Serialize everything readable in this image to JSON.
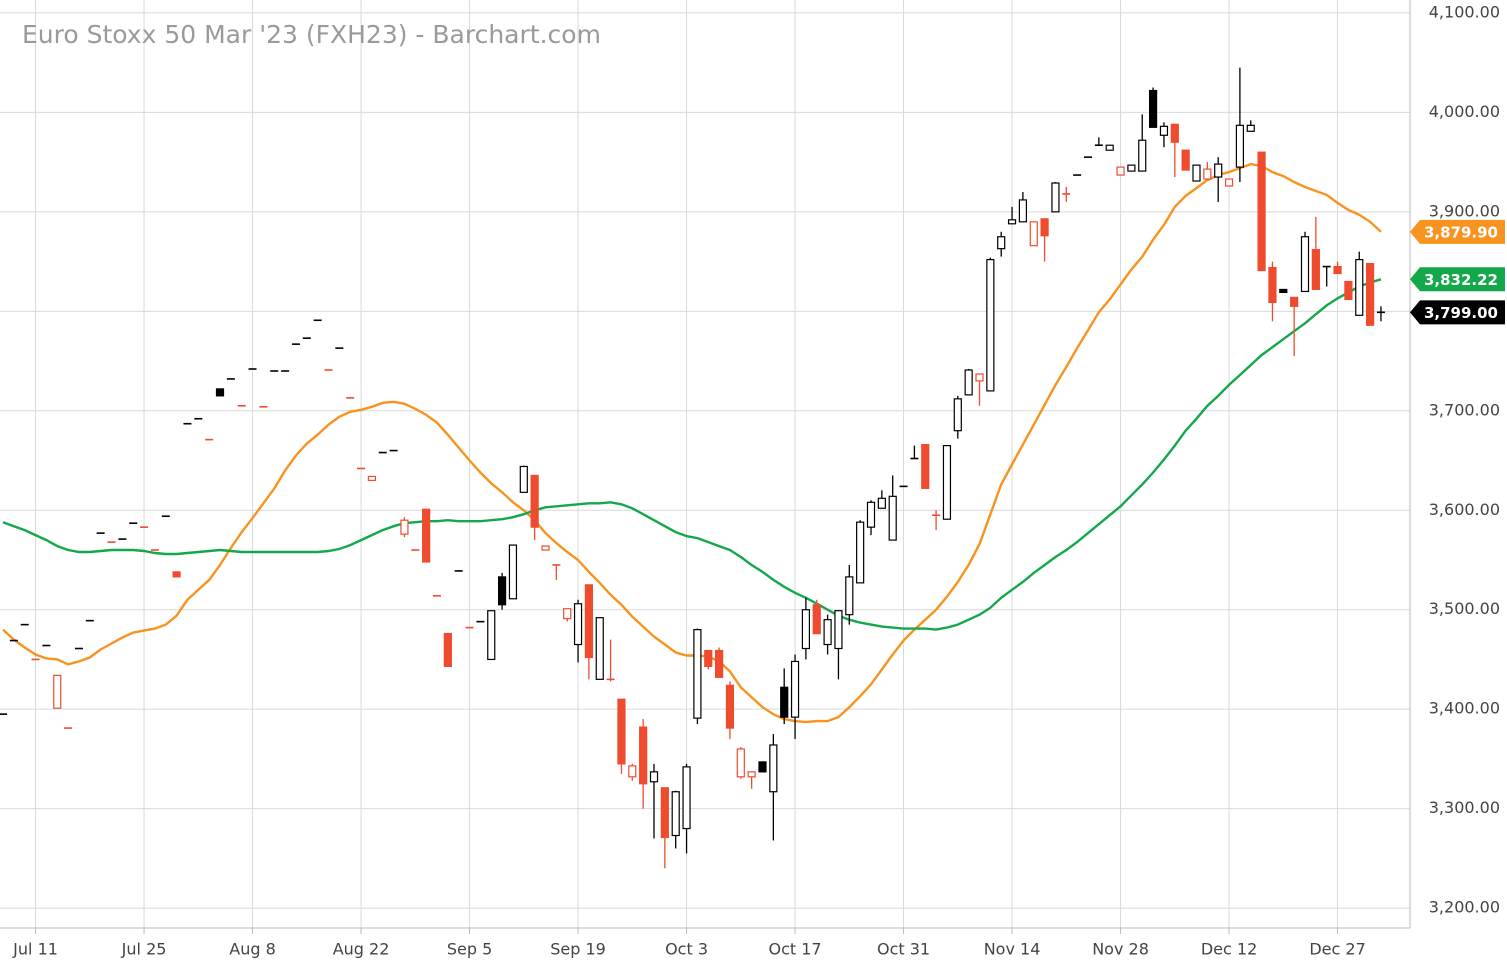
{
  "chart_data": {
    "type": "candlestick",
    "title": "Euro Stoxx 50 Mar '23 (FXH23) - Barchart.com",
    "x": [
      null,
      null,
      null,
      "Jul 11",
      null,
      null,
      null,
      null,
      null,
      null,
      null,
      null,
      null,
      "Jul 25",
      null,
      null,
      null,
      null,
      null,
      null,
      null,
      null,
      null,
      "Aug 8",
      null,
      null,
      null,
      null,
      null,
      null,
      null,
      null,
      null,
      "Aug 22",
      null,
      null,
      null,
      null,
      null,
      null,
      null,
      null,
      null,
      "Sep 5",
      null,
      null,
      null,
      null,
      null,
      null,
      null,
      null,
      null,
      "Sep 19",
      null,
      null,
      null,
      null,
      null,
      null,
      null,
      null,
      null,
      "Oct 3",
      null,
      null,
      null,
      null,
      null,
      null,
      null,
      null,
      null,
      "Oct 17",
      null,
      null,
      null,
      null,
      null,
      null,
      null,
      null,
      null,
      "Oct 31",
      null,
      null,
      null,
      null,
      null,
      null,
      null,
      null,
      null,
      "Nov 14",
      null,
      null,
      null,
      null,
      null,
      null,
      null,
      null,
      null,
      "Nov 28",
      null,
      null,
      null,
      null,
      null,
      null,
      null,
      null,
      null,
      "Dec 12",
      null,
      null,
      null,
      null,
      null,
      null,
      null,
      null,
      null,
      "Dec 27",
      null,
      null,
      null,
      null
    ],
    "ohlc": [
      [
        3395,
        3395,
        3395,
        3395
      ],
      [
        3469,
        3469,
        3469,
        3469
      ],
      [
        3485,
        3485,
        3485,
        3485
      ],
      [
        3450,
        3450,
        3450,
        3450
      ],
      [
        3464,
        3464,
        3464,
        3464
      ],
      [
        3401,
        3434,
        3401,
        3434
      ],
      [
        3381,
        3381,
        3381,
        3381
      ],
      [
        3461,
        3461,
        3461,
        3461
      ],
      [
        3489,
        3489,
        3489,
        3489
      ],
      [
        3577,
        3577,
        3577,
        3577
      ],
      [
        3568,
        3568,
        3568,
        3568
      ],
      [
        3571,
        3571,
        3571,
        3571
      ],
      [
        3587,
        3587,
        3587,
        3587
      ],
      [
        3583,
        3583,
        3583,
        3583
      ],
      [
        3560,
        3560,
        3560,
        3560
      ],
      [
        3594,
        3594,
        3594,
        3594
      ],
      [
        3538,
        3538,
        3533,
        3533
      ],
      [
        3687,
        3687,
        3687,
        3687
      ],
      [
        3692,
        3692,
        3692,
        3692
      ],
      [
        3671,
        3671,
        3671,
        3671
      ],
      [
        3722,
        3722,
        3715,
        3715
      ],
      [
        3732,
        3732,
        3732,
        3732
      ],
      [
        3705,
        3705,
        3705,
        3705
      ],
      [
        3742,
        3742,
        3742,
        3742
      ],
      [
        3704,
        3704,
        3704,
        3704
      ],
      [
        3740,
        3740,
        3740,
        3740
      ],
      [
        3740,
        3740,
        3740,
        3740
      ],
      [
        3767,
        3767,
        3767,
        3767
      ],
      [
        3773,
        3773,
        3773,
        3773
      ],
      [
        3791,
        3791,
        3791,
        3791
      ],
      [
        3741,
        3741,
        3741,
        3741
      ],
      [
        3763,
        3763,
        3763,
        3763
      ],
      [
        3713,
        3713,
        3713,
        3713
      ],
      [
        3642,
        3642,
        3642,
        3642
      ],
      [
        3630,
        3634,
        3630,
        3634
      ],
      [
        3658,
        3658,
        3658,
        3658
      ],
      [
        3660,
        3660,
        3660,
        3660
      ],
      [
        3576,
        3593,
        3573,
        3590
      ],
      [
        3560,
        3560,
        3560,
        3560
      ],
      [
        3601,
        3601,
        3548,
        3548
      ],
      [
        3514,
        3514,
        3514,
        3514
      ],
      [
        3476,
        3476,
        3443,
        3443
      ],
      [
        3539,
        3539,
        3539,
        3539
      ],
      [
        3482,
        3482,
        3482,
        3482
      ],
      [
        3488,
        3488,
        3488,
        3488
      ],
      [
        3450,
        3499,
        3450,
        3499
      ],
      [
        3533,
        3537,
        3500,
        3505
      ],
      [
        3511,
        3565,
        3511,
        3565
      ],
      [
        3618,
        3645,
        3618,
        3644
      ],
      [
        3635,
        3635,
        3570,
        3583
      ],
      [
        3560,
        3564,
        3560,
        3564
      ],
      [
        3545,
        3545,
        3530,
        3545
      ],
      [
        3491,
        3501,
        3488,
        3501
      ],
      [
        3465,
        3510,
        3447,
        3506
      ],
      [
        3525,
        3525,
        3430,
        3452
      ],
      [
        3430,
        3492,
        3430,
        3492
      ],
      [
        3430,
        3470,
        3428,
        3430
      ],
      [
        3410,
        3410,
        3335,
        3345
      ],
      [
        3332,
        3345,
        3328,
        3343
      ],
      [
        3382,
        3390,
        3300,
        3325
      ],
      [
        3327,
        3345,
        3270,
        3337
      ],
      [
        3321,
        3321,
        3240,
        3271
      ],
      [
        3273,
        3318,
        3260,
        3317
      ],
      [
        3280,
        3345,
        3255,
        3342
      ],
      [
        3391,
        3481,
        3385,
        3480
      ],
      [
        3459,
        3459,
        3440,
        3443
      ],
      [
        3459,
        3462,
        3432,
        3432
      ],
      [
        3424,
        3428,
        3370,
        3381
      ],
      [
        3332,
        3362,
        3330,
        3360
      ],
      [
        3332,
        3337,
        3320,
        3337
      ],
      [
        3347,
        3347,
        3337,
        3337
      ],
      [
        3317,
        3375,
        3268,
        3364
      ],
      [
        3422,
        3441,
        3385,
        3392
      ],
      [
        3392,
        3455,
        3370,
        3448
      ],
      [
        3461,
        3512,
        3450,
        3500
      ],
      [
        3505,
        3510,
        3476,
        3476
      ],
      [
        3465,
        3495,
        3455,
        3490
      ],
      [
        3461,
        3499,
        3430,
        3499
      ],
      [
        3495,
        3545,
        3485,
        3533
      ],
      [
        3527,
        3590,
        3527,
        3588
      ],
      [
        3583,
        3610,
        3575,
        3608
      ],
      [
        3602,
        3620,
        3602,
        3612
      ],
      [
        3570,
        3635,
        3570,
        3614
      ],
      [
        3624,
        3624,
        3624,
        3624
      ],
      [
        3652,
        3665,
        3652,
        3652
      ],
      [
        3666,
        3666,
        3622,
        3622
      ],
      [
        3595,
        3600,
        3580,
        3595
      ],
      [
        3591,
        3665,
        3591,
        3665
      ],
      [
        3680,
        3715,
        3672,
        3712
      ],
      [
        3716,
        3742,
        3716,
        3741
      ],
      [
        3730,
        3737,
        3705,
        3737
      ],
      [
        3720,
        3854,
        3720,
        3852
      ],
      [
        3863,
        3880,
        3855,
        3875
      ],
      [
        3888,
        3905,
        3888,
        3892
      ],
      [
        3890,
        3920,
        3890,
        3912
      ],
      [
        3866,
        3890,
        3866,
        3890
      ],
      [
        3893,
        3893,
        3850,
        3876
      ],
      [
        3900,
        3930,
        3900,
        3929
      ],
      [
        3918,
        3925,
        3910,
        3918
      ],
      [
        3937,
        3937,
        3937,
        3937
      ],
      [
        3955,
        3955,
        3955,
        3955
      ],
      [
        3967,
        3975,
        3967,
        3967
      ],
      [
        3962,
        3967,
        3962,
        3967
      ],
      [
        3937,
        3945,
        3937,
        3945
      ],
      [
        3941,
        3947,
        3941,
        3947
      ],
      [
        3941,
        3998,
        3941,
        3972
      ],
      [
        4022,
        4025,
        3985,
        3985
      ],
      [
        3977,
        3990,
        3965,
        3986
      ],
      [
        3988,
        3988,
        3935,
        3970
      ],
      [
        3962,
        3962,
        3942,
        3942
      ],
      [
        3931,
        3947,
        3931,
        3947
      ],
      [
        3933,
        3950,
        3933,
        3943
      ],
      [
        3935,
        3955,
        3910,
        3948
      ],
      [
        3926,
        3933,
        3926,
        3933
      ],
      [
        3945,
        4045,
        3930,
        3987
      ],
      [
        3981,
        3992,
        3981,
        3987
      ],
      [
        3960,
        3960,
        3841,
        3841
      ],
      [
        3844,
        3850,
        3790,
        3809
      ],
      [
        3822,
        3822,
        3819,
        3819
      ],
      [
        3814,
        3814,
        3755,
        3805
      ],
      [
        3820,
        3880,
        3820,
        3875
      ],
      [
        3862,
        3895,
        3822,
        3822
      ],
      [
        3845,
        3845,
        3825,
        3845
      ],
      [
        3845,
        3850,
        3838,
        3838
      ],
      [
        3830,
        3830,
        3812,
        3812
      ],
      [
        3796,
        3860,
        3796,
        3852
      ],
      [
        3848,
        3848,
        3786,
        3786
      ],
      [
        3799,
        3805,
        3790,
        3799
      ]
    ],
    "up_color": "#000000",
    "down_color": "#ef4b2f",
    "overlays": [
      {
        "color": "#f7931e",
        "values": [
          3480,
          3470,
          3462,
          3455,
          3451,
          3450,
          3445,
          3448,
          3452,
          3460,
          3466,
          3472,
          3477,
          3479,
          3481,
          3485,
          3494,
          3510,
          3520,
          3530,
          3545,
          3562,
          3578,
          3592,
          3607,
          3622,
          3640,
          3655,
          3667,
          3676,
          3686,
          3694,
          3699,
          3701,
          3704,
          3708,
          3709,
          3707,
          3702,
          3696,
          3688,
          3676,
          3663,
          3650,
          3638,
          3627,
          3618,
          3608,
          3600,
          3590,
          3577,
          3567,
          3558,
          3550,
          3538,
          3527,
          3515,
          3505,
          3493,
          3483,
          3473,
          3465,
          3457,
          3454,
          3454,
          3453,
          3448,
          3438,
          3422,
          3412,
          3402,
          3395,
          3390,
          3388,
          3387,
          3388,
          3388,
          3392,
          3402,
          3413,
          3425,
          3440,
          3455,
          3469,
          3480,
          3490,
          3500,
          3513,
          3528,
          3545,
          3566,
          3596,
          3626,
          3646,
          3666,
          3686,
          3706,
          3726,
          3744,
          3763,
          3781,
          3799,
          3812,
          3827,
          3842,
          3855,
          3872,
          3887,
          3905,
          3916,
          3924,
          3932,
          3937,
          3940,
          3944,
          3948,
          3946,
          3940,
          3936,
          3930,
          3925,
          3921,
          3917,
          3909,
          3902,
          3897,
          3890,
          3879.9
        ],
        "badge": {
          "value": 3879.9,
          "label": "3,879.90"
        }
      },
      {
        "color": "#13a84a",
        "values": [
          3588,
          3584,
          3580,
          3575,
          3570,
          3564,
          3560,
          3558,
          3558,
          3559,
          3560,
          3560,
          3560,
          3559,
          3557,
          3556,
          3556,
          3557,
          3558,
          3559,
          3560,
          3559,
          3558,
          3558,
          3558,
          3558,
          3558,
          3558,
          3558,
          3558,
          3559,
          3561,
          3565,
          3570,
          3575,
          3580,
          3584,
          3587,
          3588,
          3589,
          3589,
          3590,
          3589,
          3589,
          3589,
          3590,
          3591,
          3593,
          3596,
          3600,
          3603,
          3604,
          3605,
          3606,
          3607,
          3607,
          3608,
          3606,
          3602,
          3596,
          3590,
          3584,
          3578,
          3574,
          3572,
          3568,
          3564,
          3560,
          3553,
          3545,
          3538,
          3530,
          3523,
          3517,
          3512,
          3506,
          3500,
          3494,
          3490,
          3487,
          3485,
          3483,
          3482,
          3481,
          3481,
          3481,
          3480,
          3482,
          3485,
          3490,
          3495,
          3502,
          3512,
          3520,
          3528,
          3537,
          3545,
          3553,
          3560,
          3568,
          3577,
          3586,
          3595,
          3604,
          3615,
          3626,
          3638,
          3651,
          3665,
          3680,
          3692,
          3705,
          3715,
          3726,
          3736,
          3746,
          3756,
          3764,
          3772,
          3780,
          3788,
          3797,
          3806,
          3813,
          3819,
          3825,
          3829,
          3832.22
        ],
        "badge": {
          "value": 3832.22,
          "label": "3,832.22"
        }
      }
    ],
    "last_price": {
      "value": 3799,
      "label": "3,799.00",
      "color": "#000000"
    },
    "ylim": [
      3180,
      4113
    ],
    "yticks": [
      {
        "value": 3200,
        "label": "3,200.00"
      },
      {
        "value": 3300,
        "label": "3,300.00"
      },
      {
        "value": 3400,
        "label": "3,400.00"
      },
      {
        "value": 3500,
        "label": "3,500.00"
      },
      {
        "value": 3600,
        "label": "3,600.00"
      },
      {
        "value": 3700,
        "label": "3,700.00"
      },
      {
        "value": 3800,
        "label": "3,800.00"
      },
      {
        "value": 3900,
        "label": "3,900.00"
      },
      {
        "value": 4000,
        "label": "4,000.00"
      },
      {
        "value": 4100,
        "label": "4,100.00"
      }
    ],
    "grid": true
  }
}
